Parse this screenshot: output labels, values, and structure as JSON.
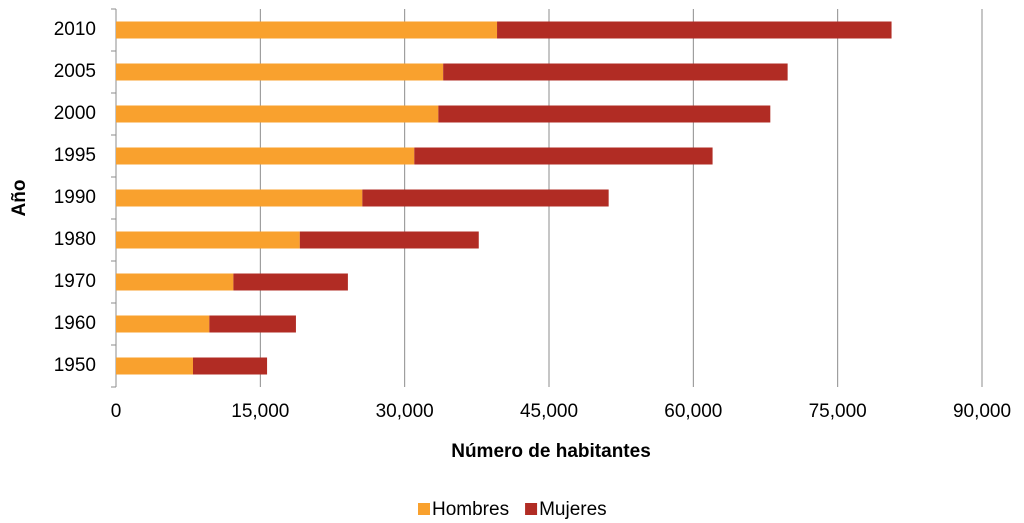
{
  "chart_data": {
    "type": "stacked_barh",
    "categories": [
      "2010",
      "2005",
      "2000",
      "1995",
      "1990",
      "1980",
      "1970",
      "1960",
      "1950"
    ],
    "series": [
      {
        "name": "Hombres",
        "color": "#f9a12e",
        "values": [
          39600,
          34000,
          33500,
          31000,
          25600,
          19100,
          12200,
          9700,
          8000
        ]
      },
      {
        "name": "Mujeres",
        "color": "#b12c24",
        "values": [
          41000,
          35800,
          34500,
          31000,
          25600,
          18600,
          11900,
          9000,
          7700
        ]
      }
    ],
    "xlim": [
      0,
      90000
    ],
    "xticks": [
      0,
      {
        "value": 15000,
        "label": "15,000"
      },
      {
        "value": 30000,
        "label": "30,000"
      },
      {
        "value": 45000,
        "label": "45,000"
      },
      {
        "value": 60000,
        "label": "60,000"
      },
      {
        "value": 75000,
        "label": "75,000"
      },
      {
        "value": 90000,
        "label": "90,000"
      }
    ],
    "xlabel": "Número de habitantes",
    "ylabel": "Año",
    "grid": true,
    "legend": "bottom"
  }
}
